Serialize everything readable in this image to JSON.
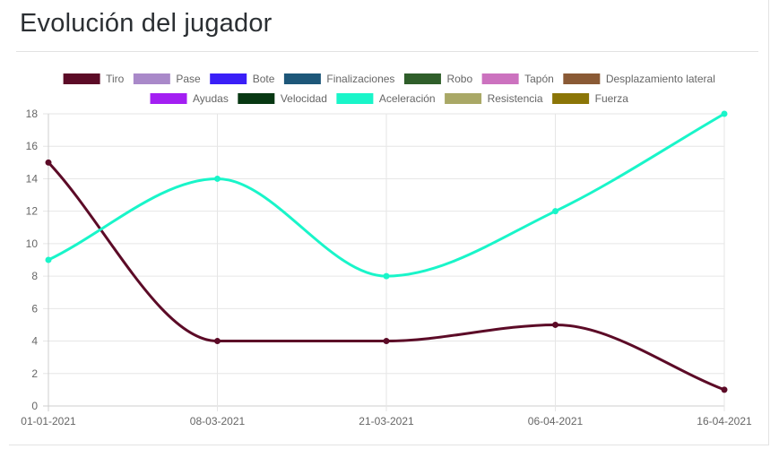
{
  "page": {
    "title": "Evolución del jugador"
  },
  "chart_data": {
    "type": "line",
    "categories": [
      "01-01-2021",
      "08-03-2021",
      "21-03-2021",
      "06-04-2021",
      "16-04-2021"
    ],
    "ylim": [
      0,
      18
    ],
    "yticks": [
      0,
      2,
      4,
      6,
      8,
      10,
      12,
      14,
      16,
      18
    ],
    "grid": true,
    "legend_position": "top",
    "series": [
      {
        "name": "Tiro",
        "color": "#5c0b27",
        "values": [
          15,
          4,
          4,
          5,
          1
        ]
      },
      {
        "name": "Pase",
        "color": "#a989c9",
        "values": null
      },
      {
        "name": "Bote",
        "color": "#3a1ff7",
        "values": null
      },
      {
        "name": "Finalizaciones",
        "color": "#1d5779",
        "values": null
      },
      {
        "name": "Robo",
        "color": "#2f5e2a",
        "values": null
      },
      {
        "name": "Tapón",
        "color": "#cc72bf",
        "values": null
      },
      {
        "name": "Desplazamiento lateral",
        "color": "#8a5a35",
        "values": null
      },
      {
        "name": "Ayudas",
        "color": "#a31ff2",
        "values": null
      },
      {
        "name": "Velocidad",
        "color": "#083813",
        "values": null
      },
      {
        "name": "Aceleración",
        "color": "#19f5c9",
        "values": [
          9,
          14,
          8,
          12,
          18
        ]
      },
      {
        "name": "Resistencia",
        "color": "#a9a866",
        "values": null
      },
      {
        "name": "Fuerza",
        "color": "#8b7507",
        "values": null
      }
    ]
  }
}
